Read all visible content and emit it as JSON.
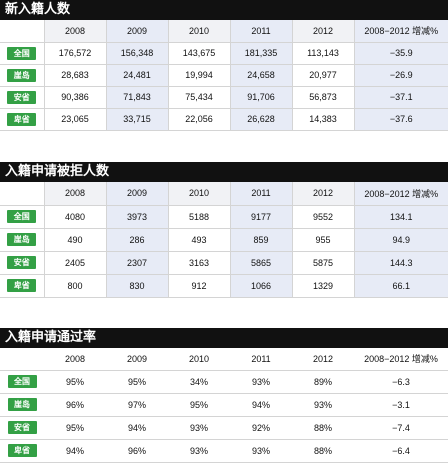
{
  "sections": [
    {
      "title": "新入籍人数",
      "header": [
        "2008",
        "2009",
        "2010",
        "2011",
        "2012",
        "2008−2012 增减%"
      ],
      "rows": [
        {
          "label": "全国",
          "values": [
            "176,572",
            "156,348",
            "143,675",
            "181,335",
            "113,143",
            "−35.9"
          ]
        },
        {
          "label": "崖岛",
          "values": [
            "28,683",
            "24,481",
            "19,994",
            "24,658",
            "20,977",
            "−26.9"
          ]
        },
        {
          "label": "安省",
          "values": [
            "90,386",
            "71,843",
            "75,434",
            "91,706",
            "56,873",
            "−37.1"
          ]
        },
        {
          "label": "卑省",
          "values": [
            "23,065",
            "33,715",
            "22,056",
            "26,628",
            "14,383",
            "−37.6"
          ]
        }
      ]
    },
    {
      "title": "入籍申请被拒人数",
      "header": [
        "2008",
        "2009",
        "2010",
        "2011",
        "2012",
        "2008−2012 增减%"
      ],
      "rows": [
        {
          "label": "全国",
          "values": [
            "4080",
            "3973",
            "5188",
            "9177",
            "9552",
            "134.1"
          ]
        },
        {
          "label": "崖岛",
          "values": [
            "490",
            "286",
            "493",
            "859",
            "955",
            "94.9"
          ]
        },
        {
          "label": "安省",
          "values": [
            "2405",
            "2307",
            "3163",
            "5865",
            "5875",
            "144.3"
          ]
        },
        {
          "label": "卑省",
          "values": [
            "800",
            "830",
            "912",
            "1066",
            "1329",
            "66.1"
          ]
        }
      ]
    },
    {
      "title": "入籍申请通过率",
      "header": [
        "2008",
        "2009",
        "2010",
        "2011",
        "2012",
        "2008−2012 增减%"
      ],
      "rows": [
        {
          "label": "全国",
          "values": [
            "95%",
            "95%",
            "34%",
            "93%",
            "89%",
            "−6.3"
          ]
        },
        {
          "label": "崖岛",
          "values": [
            "96%",
            "97%",
            "95%",
            "94%",
            "93%",
            "−3.1"
          ]
        },
        {
          "label": "安省",
          "values": [
            "95%",
            "94%",
            "93%",
            "92%",
            "88%",
            "−7.4"
          ]
        },
        {
          "label": "卑省",
          "values": [
            "94%",
            "96%",
            "93%",
            "93%",
            "88%",
            "−6.4"
          ]
        }
      ]
    }
  ]
}
